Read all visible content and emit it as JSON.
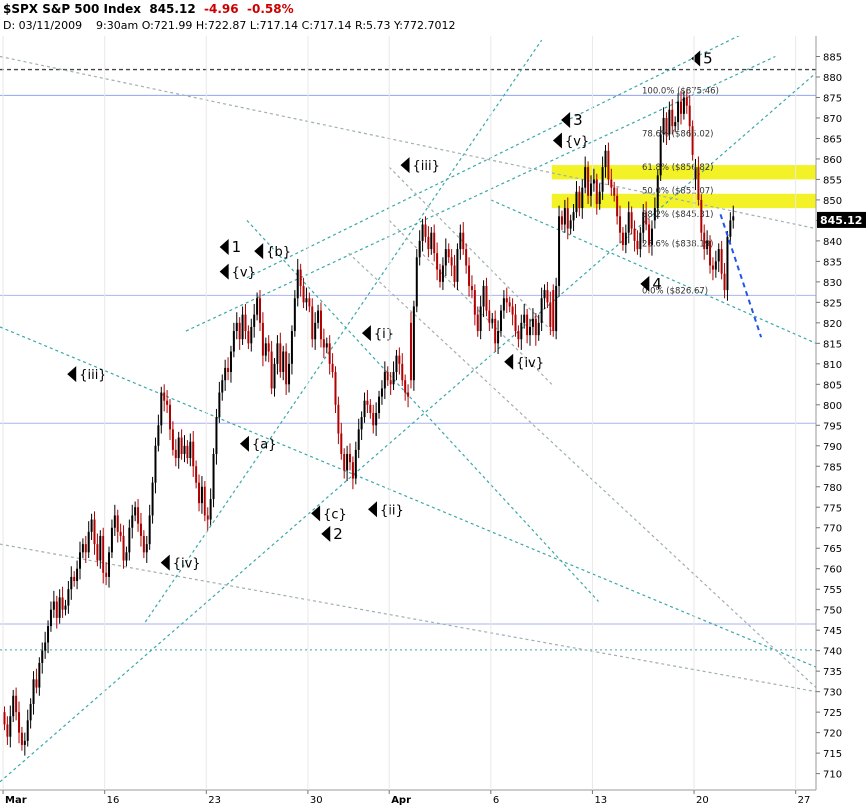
{
  "header": {
    "symbol": "$SPX S&P 500 Index",
    "last": "845.12",
    "change": "-4.96",
    "change_pct": "-0.58%",
    "info": "D: 03/11/2009    9:30am O:721.99 H:722.87 L:717.14 C:717.14 R:5.73 Y:772.7012"
  },
  "colors": {
    "up": "#000000",
    "down": "#b00000",
    "teal": "#3aa8a8",
    "gray": "#9fb0ad",
    "blue": "#2255ee",
    "fib_band": "#f0f000",
    "guide": "#aab4ee",
    "black_dash": "#444444"
  },
  "chart_data": {
    "type": "candlestick",
    "ylim": [
      706,
      890
    ],
    "y_ticks": [
      710,
      715,
      720,
      725,
      730,
      735,
      740,
      745,
      750,
      755,
      760,
      765,
      770,
      775,
      780,
      785,
      790,
      795,
      800,
      805,
      810,
      815,
      820,
      825,
      830,
      835,
      840,
      845,
      850,
      855,
      860,
      865,
      870,
      875,
      880,
      885
    ],
    "x_tick_labels": [
      {
        "label": "Mar",
        "day": 0,
        "bold": true
      },
      {
        "label": "16",
        "day": 5
      },
      {
        "label": "23",
        "day": 10
      },
      {
        "label": "30",
        "day": 15
      },
      {
        "label": "Apr",
        "day": 19,
        "bold": true
      },
      {
        "label": "6",
        "day": 24
      },
      {
        "label": "13",
        "day": 29
      },
      {
        "label": "20",
        "day": 34
      },
      {
        "label": "27",
        "day": 39
      }
    ],
    "x_days_range": [
      -0.15,
      40.0
    ],
    "last_price_label": "845.12",
    "hourly_closes": [
      [
        722,
        719,
        724,
        729,
        725,
        720,
        717
      ],
      [
        718,
        723,
        727,
        733,
        731,
        737,
        740
      ],
      [
        742,
        746,
        750,
        752,
        748,
        753,
        750
      ],
      [
        751,
        755,
        758,
        757,
        760,
        764,
        766
      ],
      [
        764,
        769,
        772,
        766,
        762,
        768,
        759
      ],
      [
        758,
        764,
        770,
        773,
        769,
        768,
        762
      ],
      [
        764,
        770,
        773,
        775,
        771,
        768,
        764
      ],
      [
        766,
        773,
        781,
        790,
        795,
        803,
        801
      ],
      [
        800,
        794,
        789,
        787,
        792,
        788,
        790
      ],
      [
        787,
        791,
        785,
        781,
        776,
        780,
        773
      ],
      [
        772,
        777,
        788,
        797,
        803,
        806,
        809
      ],
      [
        808,
        813,
        818,
        820,
        816,
        822,
        818
      ],
      [
        815,
        819,
        822,
        826,
        820,
        812,
        815
      ],
      [
        813,
        804,
        810,
        815,
        808,
        813,
        805
      ],
      [
        810,
        818,
        826,
        833,
        829,
        825,
        826
      ],
      [
        824,
        816,
        820,
        823,
        816,
        814,
        815
      ],
      [
        810,
        808,
        800,
        793,
        788,
        784,
        788
      ],
      [
        786,
        782,
        789,
        794,
        797,
        801,
        800
      ],
      [
        798,
        795,
        798,
        802,
        804,
        808,
        806
      ],
      [
        805,
        808,
        812,
        810,
        806,
        803,
        802
      ],
      [
        806,
        824,
        836,
        840,
        844,
        841,
        838
      ],
      [
        842,
        837,
        833,
        830,
        834,
        838,
        836
      ],
      [
        834,
        830,
        838,
        842,
        838,
        834,
        829
      ],
      [
        828,
        822,
        818,
        824,
        829,
        823,
        820
      ],
      [
        821,
        815,
        818,
        823,
        826,
        825,
        824
      ],
      [
        822,
        818,
        816,
        820,
        822,
        817,
        819
      ],
      [
        821,
        817,
        820,
        826,
        828,
        825,
        819
      ],
      [
        818,
        829,
        846,
        844,
        848,
        843,
        845
      ],
      [
        847,
        852,
        848,
        853,
        858,
        851,
        854
      ],
      [
        855,
        849,
        852,
        858,
        862,
        855,
        853
      ],
      [
        851,
        846,
        842,
        839,
        842,
        847,
        843
      ],
      [
        840,
        838,
        842,
        847,
        844,
        839,
        843
      ],
      [
        848,
        856,
        866,
        870,
        866,
        872,
        868
      ],
      [
        869,
        874,
        871,
        875,
        873,
        868,
        861
      ],
      [
        858,
        850,
        842,
        838,
        840,
        834,
        833
      ],
      [
        835,
        838,
        832,
        828,
        841,
        845,
        846
      ]
    ],
    "day_open_gaps": {
      "0": 725,
      "20": 820,
      "27": 828,
      "32": 845,
      "34": 855
    },
    "projection": [
      [
        35.3,
        846.5
      ],
      [
        37.3,
        816.5
      ]
    ],
    "annotations": [
      {
        "text": "{iii}",
        "day": 3.6,
        "price": 807.5
      },
      {
        "text": "{iv}",
        "day": 8.2,
        "price": 761.5
      },
      {
        "text": "{v}",
        "day": 11.1,
        "price": 832.5
      },
      {
        "text": "1",
        "day": 11.1,
        "price": 838.5
      },
      {
        "text": "{b}",
        "day": 12.8,
        "price": 837.5
      },
      {
        "text": "{a}",
        "day": 12.1,
        "price": 790.5
      },
      {
        "text": "{c}",
        "day": 15.6,
        "price": 773.5
      },
      {
        "text": "2",
        "day": 16.1,
        "price": 768.5
      },
      {
        "text": "{i}",
        "day": 18.1,
        "price": 817.5
      },
      {
        "text": "{ii}",
        "day": 18.4,
        "price": 774.5
      },
      {
        "text": "{iii}",
        "day": 20.0,
        "price": 858.5
      },
      {
        "text": "{iv}",
        "day": 25.1,
        "price": 810.5
      },
      {
        "text": "{v}",
        "day": 27.5,
        "price": 864.5
      },
      {
        "text": "3",
        "day": 27.9,
        "price": 869.5
      },
      {
        "text": "4",
        "day": 31.8,
        "price": 829.5
      },
      {
        "text": "5",
        "day": 34.3,
        "price": 884.5
      }
    ],
    "fib_levels": [
      {
        "label": "100.0%  ($875.46)",
        "price": 875.46
      },
      {
        "label": "78.6%  ($865.02)",
        "price": 865.02
      },
      {
        "label": "61.8%  ($856.82)",
        "price": 856.82
      },
      {
        "label": "50.0%  ($851.07)",
        "price": 851.07
      },
      {
        "label": "38.2%  ($845.31)",
        "price": 845.31
      },
      {
        "label": "23.6%  ($838.19)",
        "price": 838.19
      },
      {
        "label": "0.0%  ($826.67)",
        "price": 826.67
      }
    ],
    "fib_bands": [
      [
        855.0,
        858.5
      ],
      [
        848.0,
        851.5
      ]
    ],
    "horizontal_lines": [
      {
        "price": 881.8,
        "style": "black_dash"
      },
      {
        "price": 875.5,
        "style": "blue_solid"
      },
      {
        "price": 826.7,
        "style": "guide"
      },
      {
        "price": 795.5,
        "style": "guide"
      },
      {
        "price": 746.5,
        "style": "guide"
      },
      {
        "price": 740.2,
        "style": "teal_dash"
      }
    ],
    "trendlines": [
      {
        "style": "teal",
        "p1": [
          -0.15,
          708
        ],
        "p2": [
          40.0,
          881
        ]
      },
      {
        "style": "teal",
        "p1": [
          7.0,
          747
        ],
        "p2": [
          26.5,
          889
        ]
      },
      {
        "style": "teal",
        "p1": [
          9.0,
          818
        ],
        "p2": [
          38.0,
          885
        ]
      },
      {
        "style": "teal",
        "p1": [
          12.0,
          831
        ],
        "p2": [
          37.0,
          892
        ]
      },
      {
        "style": "teal",
        "p1": [
          -0.15,
          819
        ],
        "p2": [
          40.0,
          736
        ]
      },
      {
        "style": "teal",
        "p1": [
          12.0,
          845
        ],
        "p2": [
          29.3,
          752
        ]
      },
      {
        "style": "teal",
        "p1": [
          24.0,
          850
        ],
        "p2": [
          40.0,
          815
        ]
      },
      {
        "style": "gray",
        "p1": [
          17.0,
          837
        ],
        "p2": [
          40.0,
          731
        ]
      },
      {
        "style": "gray",
        "p1": [
          -0.15,
          766
        ],
        "p2": [
          40.0,
          730
        ]
      },
      {
        "style": "gray",
        "p1": [
          19.0,
          858
        ],
        "p2": [
          27.0,
          818
        ]
      },
      {
        "style": "gray",
        "p1": [
          19.0,
          845
        ],
        "p2": [
          27.0,
          805
        ]
      },
      {
        "style": "gray",
        "p1": [
          -0.15,
          885
        ],
        "p2": [
          40.0,
          843
        ]
      }
    ]
  }
}
